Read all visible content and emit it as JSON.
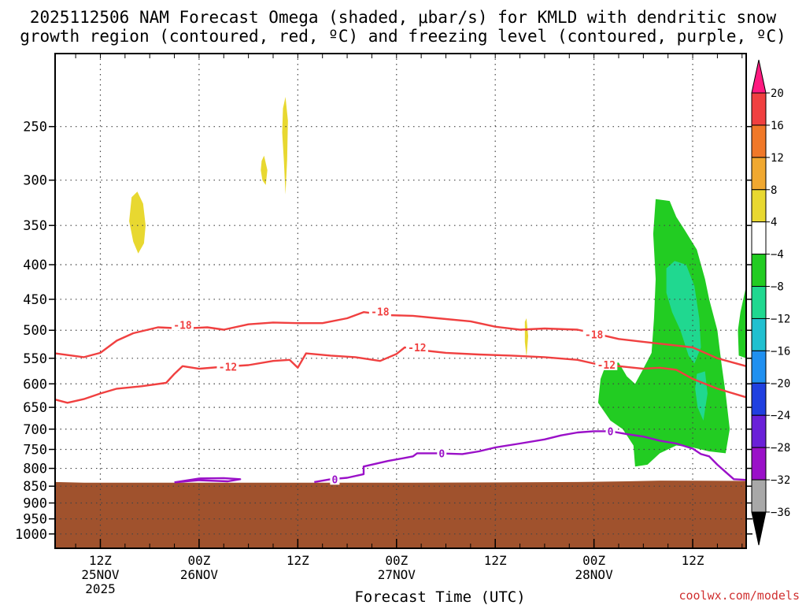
{
  "title_line1": "2025112506 NAM Forecast Omega (shaded, μbar/s) for KMLD with dendritic snow",
  "title_line2": "growth region (contoured, red, ºC) and freezing level (contoured, purple, ºC)",
  "watermark": "coolwx.com/models",
  "chart_data": {
    "type": "heatmap",
    "xlabel": "Forecast Time (UTC)",
    "x_range_hours_from_2025-11-25T00Z": [
      6.5,
      90.5
    ],
    "y_scale": "log-pressure (hPa), inverted",
    "y_range_hPa": [
      1050,
      195
    ],
    "y_ticks": [
      250,
      300,
      350,
      400,
      450,
      500,
      550,
      600,
      650,
      700,
      750,
      800,
      850,
      900,
      950,
      1000
    ],
    "x_ticks": [
      {
        "hour": 12,
        "label": "12Z",
        "sub1": "25NOV",
        "sub2": "2025"
      },
      {
        "hour": 24,
        "label": "00Z",
        "sub1": "26NOV",
        "sub2": ""
      },
      {
        "hour": 36,
        "label": "12Z",
        "sub1": "",
        "sub2": ""
      },
      {
        "hour": 48,
        "label": "00Z",
        "sub1": "27NOV",
        "sub2": ""
      },
      {
        "hour": 60,
        "label": "12Z",
        "sub1": "",
        "sub2": ""
      },
      {
        "hour": 72,
        "label": "00Z",
        "sub1": "28NOV",
        "sub2": ""
      },
      {
        "hour": 84,
        "label": "12Z",
        "sub1": "",
        "sub2": ""
      }
    ],
    "grid": true,
    "colorbar": {
      "units": "μbar/s",
      "labels": [
        "20",
        "16",
        "12",
        "8",
        "4",
        "−4",
        "−8",
        "−12",
        "−16",
        "−20",
        "−24",
        "−28",
        "−32",
        "−36"
      ],
      "colors": [
        "#ff1a80",
        "#f04040",
        "#f07828",
        "#f0a830",
        "#e8d830",
        "#ffffff",
        "#22cc22",
        "#20d890",
        "#20c0d0",
        "#2090f0",
        "#2040e0",
        "#6a20d8",
        "#9a10c8",
        "#a8a8a8",
        "#000000"
      ]
    },
    "isotherms": [
      {
        "temp_c": -18,
        "color": "#f04040",
        "points": [
          [
            6.5,
            541
          ],
          [
            10,
            548
          ],
          [
            12,
            540
          ],
          [
            14,
            518
          ],
          [
            16,
            505
          ],
          [
            19,
            495
          ],
          [
            22,
            497
          ],
          [
            25,
            495
          ],
          [
            27,
            499
          ],
          [
            30,
            490
          ],
          [
            33,
            487
          ],
          [
            36,
            488
          ],
          [
            39,
            488
          ],
          [
            42,
            480
          ],
          [
            44,
            470
          ],
          [
            47,
            475
          ],
          [
            50,
            476
          ],
          [
            53,
            480
          ],
          [
            57,
            485
          ],
          [
            60,
            494
          ],
          [
            63,
            499
          ],
          [
            66,
            497
          ],
          [
            70,
            499
          ],
          [
            72,
            505
          ],
          [
            75,
            515
          ],
          [
            78,
            520
          ],
          [
            81,
            525
          ],
          [
            84,
            530
          ],
          [
            87,
            550
          ],
          [
            90.5,
            565
          ]
        ],
        "labels": [
          {
            "hour": 22,
            "p": 491,
            "text": "-18"
          },
          {
            "hour": 46,
            "p": 469,
            "text": "-18"
          },
          {
            "hour": 72,
            "p": 507,
            "text": "-18"
          }
        ]
      },
      {
        "temp_c": -12,
        "color": "#f04040",
        "points": [
          [
            6.5,
            633
          ],
          [
            8,
            640
          ],
          [
            10,
            632
          ],
          [
            12,
            620
          ],
          [
            14,
            610
          ],
          [
            17,
            605
          ],
          [
            20,
            598
          ],
          [
            21,
            580
          ],
          [
            22,
            565
          ],
          [
            24,
            570
          ],
          [
            27,
            566
          ],
          [
            30,
            563
          ],
          [
            33,
            555
          ],
          [
            35,
            553
          ],
          [
            36,
            568
          ],
          [
            37,
            541
          ],
          [
            40,
            545
          ],
          [
            43,
            548
          ],
          [
            46,
            555
          ],
          [
            48,
            542
          ],
          [
            49,
            530
          ],
          [
            51,
            535
          ],
          [
            54,
            540
          ],
          [
            58,
            543
          ],
          [
            62,
            545
          ],
          [
            66,
            548
          ],
          [
            70,
            553
          ],
          [
            72,
            560
          ],
          [
            75,
            565
          ],
          [
            78,
            570
          ],
          [
            80,
            568
          ],
          [
            82,
            572
          ],
          [
            84,
            590
          ],
          [
            87,
            610
          ],
          [
            90.5,
            628
          ]
        ],
        "labels": [
          {
            "hour": 27.5,
            "p": 566,
            "text": "-12"
          },
          {
            "hour": 50.5,
            "p": 530,
            "text": "-12"
          },
          {
            "hour": 73.5,
            "p": 562,
            "text": "-12"
          }
        ]
      },
      {
        "temp_c": 0,
        "color": "#9a10c8",
        "points": [
          [
            21,
            839
          ],
          [
            24,
            828
          ],
          [
            27,
            827
          ],
          [
            29,
            830
          ],
          [
            27.5,
            836
          ],
          [
            24,
            833
          ],
          [
            21,
            839
          ]
        ],
        "labels": []
      },
      {
        "temp_c": 0,
        "color": "#9a10c8",
        "points": [
          [
            38,
            838
          ],
          [
            40,
            830
          ],
          [
            42,
            826
          ],
          [
            44,
            816
          ],
          [
            44,
            795
          ],
          [
            47,
            780
          ],
          [
            49,
            772
          ],
          [
            50,
            768
          ],
          [
            50.5,
            760
          ],
          [
            53,
            760
          ],
          [
            56,
            762
          ],
          [
            58,
            755
          ],
          [
            60,
            745
          ],
          [
            63,
            735
          ],
          [
            66,
            725
          ],
          [
            68,
            715
          ],
          [
            70,
            708
          ],
          [
            72,
            705
          ],
          [
            74,
            705
          ],
          [
            76,
            712
          ],
          [
            78,
            718
          ],
          [
            80,
            728
          ],
          [
            82,
            735
          ],
          [
            84,
            748
          ],
          [
            85,
            762
          ],
          [
            86,
            768
          ],
          [
            87,
            790
          ],
          [
            88,
            810
          ],
          [
            89,
            830
          ],
          [
            90.5,
            832
          ]
        ],
        "labels": [
          {
            "hour": 40.5,
            "p": 830,
            "text": "0"
          },
          {
            "hour": 53.5,
            "p": 760,
            "text": "0"
          },
          {
            "hour": 74,
            "p": 705,
            "text": "0"
          }
        ]
      }
    ],
    "omega_regions": [
      {
        "level": "4",
        "color": "#e8d830",
        "points": [
          [
            15.8,
            318
          ],
          [
            16.5,
            312
          ],
          [
            17.2,
            325
          ],
          [
            17.5,
            350
          ],
          [
            17.3,
            372
          ],
          [
            16.6,
            385
          ],
          [
            16,
            370
          ],
          [
            15.5,
            345
          ]
        ]
      },
      {
        "level": "4",
        "color": "#e8d830",
        "points": [
          [
            31.6,
            281
          ],
          [
            31.9,
            276
          ],
          [
            32.3,
            290
          ],
          [
            32.1,
            305
          ],
          [
            31.7,
            300
          ],
          [
            31.5,
            290
          ]
        ]
      },
      {
        "level": "4",
        "color": "#e8d830",
        "points": [
          [
            34.2,
            235
          ],
          [
            34.5,
            226
          ],
          [
            34.8,
            245
          ],
          [
            34.7,
            280
          ],
          [
            34.5,
            315
          ],
          [
            34.3,
            280
          ],
          [
            34.1,
            255
          ]
        ]
      },
      {
        "level": "4",
        "color": "#e8d830",
        "points": [
          [
            63.6,
            486
          ],
          [
            63.8,
            480
          ],
          [
            64,
            510
          ],
          [
            63.8,
            548
          ],
          [
            63.6,
            520
          ]
        ]
      },
      {
        "level": "-4",
        "color": "#22cc22",
        "points": [
          [
            79.5,
            320
          ],
          [
            81.2,
            322
          ],
          [
            82,
            340
          ],
          [
            83,
            355
          ],
          [
            84.5,
            380
          ],
          [
            85.5,
            420
          ],
          [
            86,
            450
          ],
          [
            87,
            500
          ],
          [
            87.5,
            560
          ],
          [
            88,
            620
          ],
          [
            88.5,
            700
          ],
          [
            88,
            760
          ],
          [
            86,
            755
          ],
          [
            84,
            745
          ],
          [
            82,
            740
          ],
          [
            80,
            760
          ],
          [
            78.5,
            790
          ],
          [
            77,
            795
          ],
          [
            76.8,
            740
          ],
          [
            75.5,
            700
          ],
          [
            74,
            680
          ],
          [
            72.5,
            640
          ],
          [
            72.8,
            590
          ],
          [
            73.5,
            560
          ],
          [
            75,
            558
          ],
          [
            76,
            585
          ],
          [
            77,
            600
          ],
          [
            78,
            570
          ],
          [
            79,
            540
          ],
          [
            79.3,
            480
          ],
          [
            79.5,
            420
          ],
          [
            79.2,
            360
          ]
        ]
      },
      {
        "level": "-4",
        "color": "#22cc22",
        "points": [
          [
            89.8,
            470
          ],
          [
            90.5,
            430
          ],
          [
            90.5,
            550
          ],
          [
            89.6,
            545
          ],
          [
            89.5,
            500
          ]
        ]
      },
      {
        "level": "-8",
        "color": "#20d890",
        "points": [
          [
            80.8,
            405
          ],
          [
            81.8,
            395
          ],
          [
            83.2,
            400
          ],
          [
            84.2,
            430
          ],
          [
            84.8,
            480
          ],
          [
            85,
            530
          ],
          [
            84.2,
            560
          ],
          [
            83.5,
            545
          ],
          [
            82.5,
            500
          ],
          [
            81.5,
            470
          ],
          [
            80.8,
            440
          ]
        ]
      },
      {
        "level": "-8",
        "color": "#20d890",
        "points": [
          [
            84.5,
            580
          ],
          [
            85.5,
            575
          ],
          [
            85.8,
            620
          ],
          [
            85.3,
            680
          ],
          [
            84.6,
            650
          ],
          [
            84.3,
            610
          ]
        ]
      }
    ],
    "terrain": {
      "color": "#a0522d",
      "points": [
        [
          6.5,
          838
        ],
        [
          10,
          840
        ],
        [
          30,
          840
        ],
        [
          50,
          840
        ],
        [
          70,
          838
        ],
        [
          76,
          836
        ],
        [
          80,
          834
        ],
        [
          90.5,
          835
        ]
      ]
    }
  }
}
